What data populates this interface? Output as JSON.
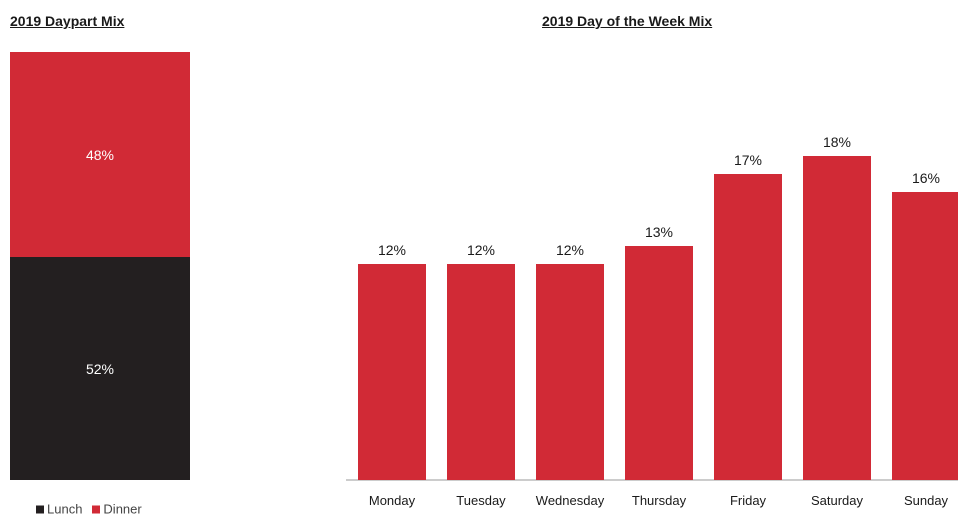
{
  "chart_data": [
    {
      "type": "bar",
      "stacked": true,
      "title": "2019 Daypart Mix",
      "categories": [
        ""
      ],
      "series": [
        {
          "name": "Lunch",
          "values": [
            52
          ],
          "label": "52%",
          "color": "#231f20"
        },
        {
          "name": "Dinner",
          "values": [
            48
          ],
          "label": "48%",
          "color": "#d12a36"
        }
      ],
      "ylim": [
        0,
        100
      ],
      "legend": "bottom-left",
      "grid": false
    },
    {
      "type": "bar",
      "title": "2019 Day of the Week Mix",
      "categories": [
        "Monday",
        "Tuesday",
        "Wednesday",
        "Thursday",
        "Friday",
        "Saturday",
        "Sunday"
      ],
      "values": [
        12,
        12,
        12,
        13,
        17,
        18,
        16
      ],
      "data_labels": [
        "12%",
        "12%",
        "12%",
        "13%",
        "17%",
        "18%",
        "16%"
      ],
      "bar_color": "#d12a36",
      "ylim": [
        0,
        18
      ],
      "grid": false
    }
  ]
}
